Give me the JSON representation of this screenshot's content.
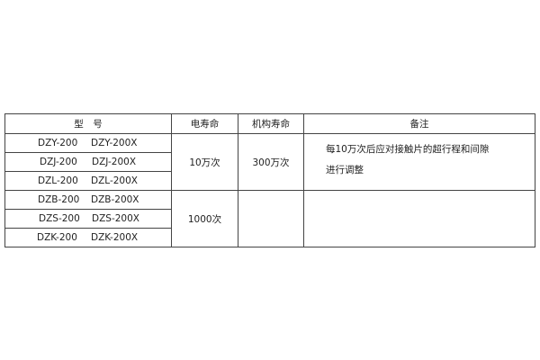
{
  "table": {
    "headers": [
      "型　号",
      "电寿命",
      "机构寿命",
      "备注"
    ],
    "models": [
      [
        "DZY-200",
        "DZY-200X"
      ],
      [
        "DZJ-200",
        "DZJ-200X"
      ],
      [
        "DZL-200",
        "DZL-200X"
      ],
      [
        "DZB-200",
        "DZB-200X"
      ],
      [
        "DZS-200",
        "DZS-200X"
      ],
      [
        "DZK-200",
        "DZK-200X"
      ]
    ],
    "group1": {
      "electrical_life": "10万次",
      "mechanical_life": "300万次",
      "note_lines": [
        "每10万次后应对接触片的超行程和间隙",
        "进行调整"
      ]
    },
    "group2": {
      "electrical_life": "1000次",
      "mechanical_life": "",
      "note_lines": []
    }
  }
}
